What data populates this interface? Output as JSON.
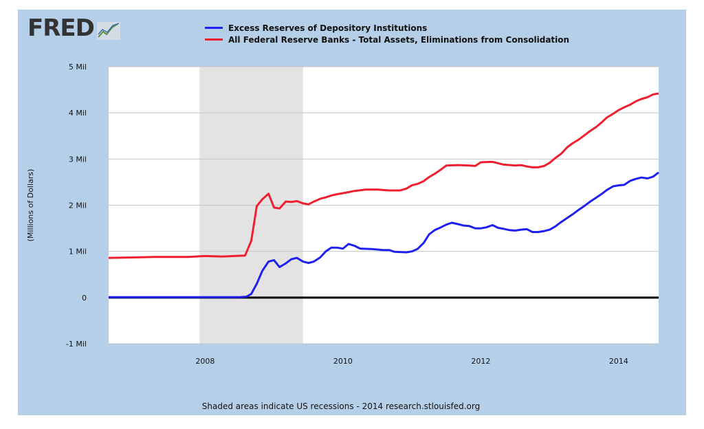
{
  "logo": {
    "text": "FRED"
  },
  "footer": {
    "note": "Shaded areas indicate US recessions - 2014 research.stlouisfed.org"
  },
  "chart_data": {
    "type": "line",
    "title": "",
    "xlabel": "",
    "ylabel": "(Millions of Dollars)",
    "xlim": [
      2006.6,
      2014.58
    ],
    "ylim": [
      -1,
      5
    ],
    "grid": true,
    "legend_position": "top",
    "y_ticks": [
      {
        "value": 5,
        "label": "5 Mil"
      },
      {
        "value": 4,
        "label": "4 Mil"
      },
      {
        "value": 3,
        "label": "3 Mil"
      },
      {
        "value": 2,
        "label": "2 Mil"
      },
      {
        "value": 1,
        "label": "1 Mil"
      },
      {
        "value": 0,
        "label": "0"
      },
      {
        "value": -1,
        "label": "-1 Mil"
      }
    ],
    "x_ticks": [
      {
        "value": 2008,
        "label": "2008"
      },
      {
        "value": 2010,
        "label": "2010"
      },
      {
        "value": 2012,
        "label": "2012"
      },
      {
        "value": 2014,
        "label": "2014"
      }
    ],
    "recessions": [
      {
        "start": 2007.92,
        "end": 2009.42
      }
    ],
    "zero_line_color": "#000000",
    "series": [
      {
        "name": "Excess Reserves of Depository Institutions",
        "color": "#1f1fef",
        "points": [
          [
            2006.6,
            0.01
          ],
          [
            2007.0,
            0.01
          ],
          [
            2007.5,
            0.01
          ],
          [
            2008.0,
            0.01
          ],
          [
            2008.5,
            0.01
          ],
          [
            2008.6,
            0.02
          ],
          [
            2008.67,
            0.08
          ],
          [
            2008.75,
            0.3
          ],
          [
            2008.83,
            0.58
          ],
          [
            2008.92,
            0.78
          ],
          [
            2009.0,
            0.81
          ],
          [
            2009.08,
            0.66
          ],
          [
            2009.17,
            0.74
          ],
          [
            2009.25,
            0.83
          ],
          [
            2009.33,
            0.86
          ],
          [
            2009.42,
            0.78
          ],
          [
            2009.5,
            0.75
          ],
          [
            2009.58,
            0.78
          ],
          [
            2009.67,
            0.87
          ],
          [
            2009.75,
            1.0
          ],
          [
            2009.83,
            1.08
          ],
          [
            2009.92,
            1.08
          ],
          [
            2010.0,
            1.06
          ],
          [
            2010.08,
            1.16
          ],
          [
            2010.17,
            1.12
          ],
          [
            2010.25,
            1.06
          ],
          [
            2010.42,
            1.05
          ],
          [
            2010.58,
            1.03
          ],
          [
            2010.67,
            1.03
          ],
          [
            2010.75,
            0.99
          ],
          [
            2010.92,
            0.98
          ],
          [
            2011.0,
            1.0
          ],
          [
            2011.08,
            1.05
          ],
          [
            2011.17,
            1.18
          ],
          [
            2011.25,
            1.37
          ],
          [
            2011.33,
            1.46
          ],
          [
            2011.42,
            1.52
          ],
          [
            2011.5,
            1.58
          ],
          [
            2011.58,
            1.62
          ],
          [
            2011.67,
            1.59
          ],
          [
            2011.75,
            1.56
          ],
          [
            2011.83,
            1.55
          ],
          [
            2011.92,
            1.5
          ],
          [
            2012.0,
            1.5
          ],
          [
            2012.08,
            1.52
          ],
          [
            2012.17,
            1.57
          ],
          [
            2012.25,
            1.51
          ],
          [
            2012.33,
            1.49
          ],
          [
            2012.42,
            1.46
          ],
          [
            2012.5,
            1.45
          ],
          [
            2012.58,
            1.47
          ],
          [
            2012.67,
            1.48
          ],
          [
            2012.75,
            1.42
          ],
          [
            2012.83,
            1.42
          ],
          [
            2012.92,
            1.44
          ],
          [
            2013.0,
            1.47
          ],
          [
            2013.08,
            1.54
          ],
          [
            2013.17,
            1.64
          ],
          [
            2013.25,
            1.72
          ],
          [
            2013.33,
            1.8
          ],
          [
            2013.42,
            1.9
          ],
          [
            2013.5,
            1.98
          ],
          [
            2013.58,
            2.07
          ],
          [
            2013.67,
            2.16
          ],
          [
            2013.75,
            2.24
          ],
          [
            2013.83,
            2.33
          ],
          [
            2013.92,
            2.41
          ],
          [
            2014.0,
            2.43
          ],
          [
            2014.08,
            2.44
          ],
          [
            2014.17,
            2.53
          ],
          [
            2014.25,
            2.57
          ],
          [
            2014.33,
            2.6
          ],
          [
            2014.42,
            2.58
          ],
          [
            2014.5,
            2.62
          ],
          [
            2014.58,
            2.71
          ]
        ]
      },
      {
        "name": "All Federal Reserve Banks - Total Assets, Eliminations from Consolidation",
        "color": "#ef1f2f",
        "points": [
          [
            2006.6,
            0.86
          ],
          [
            2007.0,
            0.87
          ],
          [
            2007.25,
            0.88
          ],
          [
            2007.5,
            0.88
          ],
          [
            2007.75,
            0.88
          ],
          [
            2008.0,
            0.9
          ],
          [
            2008.25,
            0.89
          ],
          [
            2008.42,
            0.9
          ],
          [
            2008.58,
            0.91
          ],
          [
            2008.67,
            1.23
          ],
          [
            2008.75,
            1.98
          ],
          [
            2008.83,
            2.13
          ],
          [
            2008.92,
            2.25
          ],
          [
            2009.0,
            1.95
          ],
          [
            2009.08,
            1.93
          ],
          [
            2009.17,
            2.08
          ],
          [
            2009.25,
            2.07
          ],
          [
            2009.33,
            2.09
          ],
          [
            2009.42,
            2.04
          ],
          [
            2009.5,
            2.02
          ],
          [
            2009.58,
            2.08
          ],
          [
            2009.67,
            2.14
          ],
          [
            2009.75,
            2.17
          ],
          [
            2009.83,
            2.21
          ],
          [
            2009.92,
            2.24
          ],
          [
            2010.0,
            2.26
          ],
          [
            2010.17,
            2.31
          ],
          [
            2010.33,
            2.34
          ],
          [
            2010.5,
            2.34
          ],
          [
            2010.67,
            2.32
          ],
          [
            2010.83,
            2.32
          ],
          [
            2010.92,
            2.36
          ],
          [
            2011.0,
            2.43
          ],
          [
            2011.08,
            2.46
          ],
          [
            2011.17,
            2.52
          ],
          [
            2011.25,
            2.61
          ],
          [
            2011.33,
            2.68
          ],
          [
            2011.42,
            2.77
          ],
          [
            2011.5,
            2.86
          ],
          [
            2011.67,
            2.87
          ],
          [
            2011.83,
            2.86
          ],
          [
            2011.92,
            2.85
          ],
          [
            2012.0,
            2.93
          ],
          [
            2012.17,
            2.94
          ],
          [
            2012.25,
            2.91
          ],
          [
            2012.33,
            2.88
          ],
          [
            2012.5,
            2.86
          ],
          [
            2012.58,
            2.87
          ],
          [
            2012.67,
            2.84
          ],
          [
            2012.75,
            2.82
          ],
          [
            2012.83,
            2.82
          ],
          [
            2012.92,
            2.85
          ],
          [
            2013.0,
            2.92
          ],
          [
            2013.08,
            3.02
          ],
          [
            2013.17,
            3.12
          ],
          [
            2013.25,
            3.25
          ],
          [
            2013.33,
            3.34
          ],
          [
            2013.42,
            3.42
          ],
          [
            2013.5,
            3.51
          ],
          [
            2013.58,
            3.6
          ],
          [
            2013.67,
            3.69
          ],
          [
            2013.75,
            3.79
          ],
          [
            2013.83,
            3.9
          ],
          [
            2013.92,
            3.98
          ],
          [
            2014.0,
            4.06
          ],
          [
            2014.08,
            4.12
          ],
          [
            2014.17,
            4.18
          ],
          [
            2014.25,
            4.25
          ],
          [
            2014.33,
            4.3
          ],
          [
            2014.42,
            4.34
          ],
          [
            2014.5,
            4.4
          ],
          [
            2014.58,
            4.42
          ]
        ]
      }
    ]
  }
}
